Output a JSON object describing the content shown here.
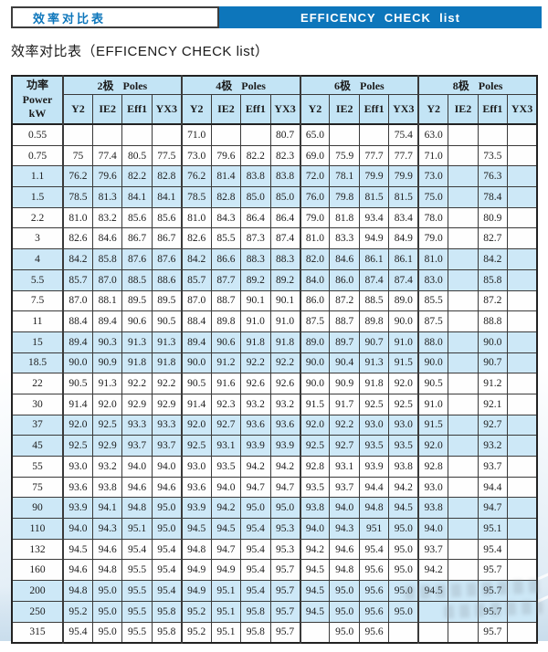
{
  "banner": {
    "left_title": "效率对比表",
    "right_title": "EFFICENCY  CHECK  list"
  },
  "heading": "效率对比表（EFFICENCY CHECK list）",
  "colors": {
    "accent_blue": "#0d76bb",
    "header_bg": "#c3e4f5",
    "row_highlight": "#cde8f7",
    "border_dark": "#3a3a3a"
  },
  "table": {
    "power_header": {
      "cn": "功率",
      "en": "Power",
      "unit": "kW"
    },
    "groups": [
      {
        "cn": "2极",
        "en": "Poles"
      },
      {
        "cn": "4极",
        "en": "Poles"
      },
      {
        "cn": "6极",
        "en": "Poles"
      },
      {
        "cn": "8极",
        "en": "Poles"
      }
    ],
    "subcolumns": [
      "Y2",
      "IE2",
      "Eff1",
      "YX3"
    ],
    "rows": [
      {
        "power": "0.55",
        "highlight": false,
        "values": [
          "",
          "",
          "",
          "",
          "71.0",
          "",
          "",
          "80.7",
          "65.0",
          "",
          "",
          "75.4",
          "63.0",
          "",
          "",
          ""
        ]
      },
      {
        "power": "0.75",
        "highlight": false,
        "values": [
          "75",
          "77.4",
          "80.5",
          "77.5",
          "73.0",
          "79.6",
          "82.2",
          "82.3",
          "69.0",
          "75.9",
          "77.7",
          "77.7",
          "71.0",
          "",
          "73.5",
          ""
        ]
      },
      {
        "power": "1.1",
        "highlight": true,
        "values": [
          "76.2",
          "79.6",
          "82.2",
          "82.8",
          "76.2",
          "81.4",
          "83.8",
          "83.8",
          "72.0",
          "78.1",
          "79.9",
          "79.9",
          "73.0",
          "",
          "76.3",
          ""
        ]
      },
      {
        "power": "1.5",
        "highlight": true,
        "values": [
          "78.5",
          "81.3",
          "84.1",
          "84.1",
          "78.5",
          "82.8",
          "85.0",
          "85.0",
          "76.0",
          "79.8",
          "81.5",
          "81.5",
          "75.0",
          "",
          "78.4",
          ""
        ]
      },
      {
        "power": "2.2",
        "highlight": false,
        "values": [
          "81.0",
          "83.2",
          "85.6",
          "85.6",
          "81.0",
          "84.3",
          "86.4",
          "86.4",
          "79.0",
          "81.8",
          "93.4",
          "83.4",
          "78.0",
          "",
          "80.9",
          ""
        ]
      },
      {
        "power": "3",
        "highlight": false,
        "values": [
          "82.6",
          "84.6",
          "86.7",
          "86.7",
          "82.6",
          "85.5",
          "87.3",
          "87.4",
          "81.0",
          "83.3",
          "94.9",
          "84.9",
          "79.0",
          "",
          "82.7",
          ""
        ]
      },
      {
        "power": "4",
        "highlight": true,
        "values": [
          "84.2",
          "85.8",
          "87.6",
          "87.6",
          "84.2",
          "86.6",
          "88.3",
          "88.3",
          "82.0",
          "84.6",
          "86.1",
          "86.1",
          "81.0",
          "",
          "84.2",
          ""
        ]
      },
      {
        "power": "5.5",
        "highlight": true,
        "values": [
          "85.7",
          "87.0",
          "88.5",
          "88.6",
          "85.7",
          "87.7",
          "89.2",
          "89.2",
          "84.0",
          "86.0",
          "87.4",
          "87.4",
          "83.0",
          "",
          "85.8",
          ""
        ]
      },
      {
        "power": "7.5",
        "highlight": false,
        "values": [
          "87.0",
          "88.1",
          "89.5",
          "89.5",
          "87.0",
          "88.7",
          "90.1",
          "90.1",
          "86.0",
          "87.2",
          "88.5",
          "89.0",
          "85.5",
          "",
          "87.2",
          ""
        ]
      },
      {
        "power": "11",
        "highlight": false,
        "values": [
          "88.4",
          "89.4",
          "90.6",
          "90.5",
          "88.4",
          "89.8",
          "91.0",
          "91.0",
          "87.5",
          "88.7",
          "89.8",
          "90.0",
          "87.5",
          "",
          "88.8",
          ""
        ]
      },
      {
        "power": "15",
        "highlight": true,
        "values": [
          "89.4",
          "90.3",
          "91.3",
          "91.3",
          "89.4",
          "90.6",
          "91.8",
          "91.8",
          "89.0",
          "89.7",
          "90.7",
          "91.0",
          "88.0",
          "",
          "90.0",
          ""
        ]
      },
      {
        "power": "18.5",
        "highlight": true,
        "values": [
          "90.0",
          "90.9",
          "91.8",
          "91.8",
          "90.0",
          "91.2",
          "92.2",
          "92.2",
          "90.0",
          "90.4",
          "91.3",
          "91.5",
          "90.0",
          "",
          "90.7",
          ""
        ]
      },
      {
        "power": "22",
        "highlight": false,
        "values": [
          "90.5",
          "91.3",
          "92.2",
          "92.2",
          "90.5",
          "91.6",
          "92.6",
          "92.6",
          "90.0",
          "90.9",
          "91.8",
          "92.0",
          "90.5",
          "",
          "91.2",
          ""
        ]
      },
      {
        "power": "30",
        "highlight": false,
        "values": [
          "91.4",
          "92.0",
          "92.9",
          "92.9",
          "91.4",
          "92.3",
          "93.2",
          "93.2",
          "91.5",
          "91.7",
          "92.5",
          "92.5",
          "91.0",
          "",
          "92.1",
          ""
        ]
      },
      {
        "power": "37",
        "highlight": true,
        "values": [
          "92.0",
          "92.5",
          "93.3",
          "93.3",
          "92.0",
          "92.7",
          "93.6",
          "93.6",
          "92.0",
          "92.2",
          "93.0",
          "93.0",
          "91.5",
          "",
          "92.7",
          ""
        ]
      },
      {
        "power": "45",
        "highlight": true,
        "values": [
          "92.5",
          "92.9",
          "93.7",
          "93.7",
          "92.5",
          "93.1",
          "93.9",
          "93.9",
          "92.5",
          "92.7",
          "93.5",
          "93.5",
          "92.0",
          "",
          "93.2",
          ""
        ]
      },
      {
        "power": "55",
        "highlight": false,
        "values": [
          "93.0",
          "93.2",
          "94.0",
          "94.0",
          "93.0",
          "93.5",
          "94.2",
          "94.2",
          "92.8",
          "93.1",
          "93.9",
          "93.8",
          "92.8",
          "",
          "93.7",
          ""
        ]
      },
      {
        "power": "75",
        "highlight": false,
        "values": [
          "93.6",
          "93.8",
          "94.6",
          "94.6",
          "93.6",
          "94.0",
          "94.7",
          "94.7",
          "93.5",
          "93.7",
          "94.4",
          "94.2",
          "93.0",
          "",
          "94.4",
          ""
        ]
      },
      {
        "power": "90",
        "highlight": true,
        "values": [
          "93.9",
          "94.1",
          "94.8",
          "95.0",
          "93.9",
          "94.2",
          "95.0",
          "95.0",
          "93.8",
          "94.0",
          "94.8",
          "94.5",
          "93.8",
          "",
          "94.7",
          ""
        ]
      },
      {
        "power": "110",
        "highlight": true,
        "values": [
          "94.0",
          "94.3",
          "95.1",
          "95.0",
          "94.5",
          "94.5",
          "95.4",
          "95.3",
          "94.0",
          "94.3",
          "951",
          "95.0",
          "94.0",
          "",
          "95.1",
          ""
        ]
      },
      {
        "power": "132",
        "highlight": false,
        "values": [
          "94.5",
          "94.6",
          "95.4",
          "95.4",
          "94.8",
          "94.7",
          "95.4",
          "95.3",
          "94.2",
          "94.6",
          "95.4",
          "95.0",
          "93.7",
          "",
          "95.4",
          ""
        ]
      },
      {
        "power": "160",
        "highlight": false,
        "values": [
          "94.6",
          "94.8",
          "95.5",
          "95.4",
          "94.9",
          "94.9",
          "95.4",
          "95.7",
          "94.5",
          "94.8",
          "95.6",
          "95.0",
          "94.2",
          "",
          "95.7",
          ""
        ]
      },
      {
        "power": "200",
        "highlight": true,
        "values": [
          "94.8",
          "95.0",
          "95.5",
          "95.4",
          "94.9",
          "95.1",
          "95.4",
          "95.7",
          "94.5",
          "95.0",
          "95.6",
          "95.0",
          "94.5",
          "",
          "95.7",
          ""
        ]
      },
      {
        "power": "250",
        "highlight": true,
        "values": [
          "95.2",
          "95.0",
          "95.5",
          "95.8",
          "95.2",
          "95.1",
          "95.8",
          "95.7",
          "94.5",
          "95.0",
          "95.6",
          "95.0",
          "",
          "",
          "95.7",
          ""
        ]
      },
      {
        "power": "315",
        "highlight": false,
        "values": [
          "95.4",
          "95.0",
          "95.5",
          "95.8",
          "95.2",
          "95.1",
          "95.8",
          "95.7",
          "",
          "95.0",
          "95.6",
          "",
          "",
          "",
          "95.7",
          ""
        ]
      }
    ]
  }
}
